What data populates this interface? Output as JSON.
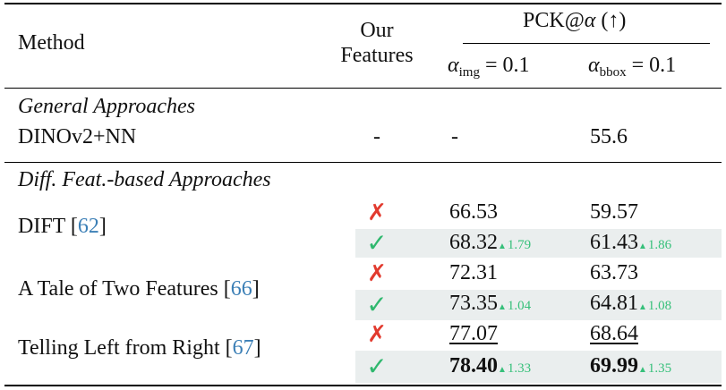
{
  "header": {
    "method": "Method",
    "our_features_line1": "Our",
    "our_features_line2": "Features",
    "pck": "PCK@",
    "pck_alpha": "α",
    "pck_arrow": "(↑)",
    "alpha_img_symbol": "α",
    "alpha_img_sub": "img",
    "alpha_img_rest": " = 0.1",
    "alpha_bbox_symbol": "α",
    "alpha_bbox_sub": "bbox",
    "alpha_bbox_rest": " = 0.1"
  },
  "sections": {
    "general": "General Approaches",
    "diff": "Diff. Feat.-based Approaches"
  },
  "rows": {
    "dinov2": {
      "method": "DINOv2+NN",
      "features": "-",
      "img": "-",
      "bbox": "55.6"
    },
    "dift": {
      "method": "DIFT [",
      "cite": "62",
      "close": "]",
      "without": {
        "mark": "✗",
        "img": "66.53",
        "bbox": "59.57"
      },
      "with": {
        "mark": "✓",
        "img": "68.32",
        "img_delta": "1.79",
        "bbox": "61.43",
        "bbox_delta": "1.86"
      }
    },
    "tale": {
      "method": "A Tale of Two Features [",
      "cite": "66",
      "close": "]",
      "without": {
        "mark": "✗",
        "img": "72.31",
        "bbox": "63.73"
      },
      "with": {
        "mark": "✓",
        "img": "73.35",
        "img_delta": "1.04",
        "bbox": "64.81",
        "bbox_delta": "1.08"
      }
    },
    "telling": {
      "method": "Telling Left from Right [",
      "cite": "67",
      "close": "]",
      "without": {
        "mark": "✗",
        "img": "77.07",
        "bbox": "68.64"
      },
      "with": {
        "mark": "✓",
        "img": "78.40",
        "img_delta": "1.33",
        "bbox": "69.99",
        "bbox_delta": "1.35"
      }
    }
  },
  "delta_arrow": "▲",
  "colors": {
    "check": "#2fb86e",
    "cross": "#e23a2e",
    "delta": "#36c07a",
    "cite": "#3b7fb6",
    "shade": "#eaeeee"
  }
}
